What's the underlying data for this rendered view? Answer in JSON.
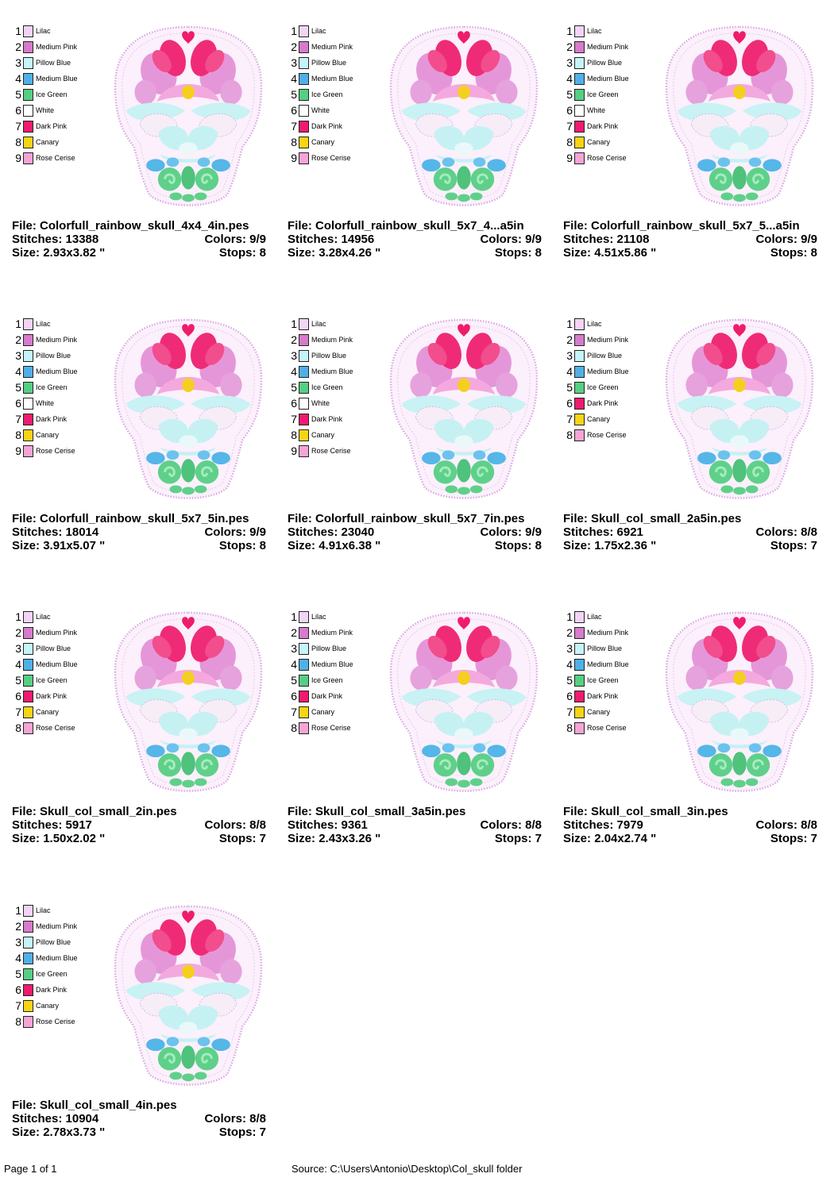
{
  "palette_colors": {
    "Lilac": "#f2d4f6",
    "Medium Pink": "#d77bcc",
    "Pillow Blue": "#c5f4f9",
    "Medium Blue": "#4fb0e8",
    "Ice Green": "#55cf83",
    "White": "#ffffff",
    "Dark Pink": "#f01b6e",
    "Canary": "#f6d515",
    "Rose Cerise": "#f6a4d6"
  },
  "labels": {
    "file": "File:",
    "stitches": "Stitches:",
    "colors": "Colors:",
    "size": "Size:",
    "stops": "Stops:"
  },
  "designs": [
    {
      "file": "Colorfull_rainbow_skull_4x4_4in.pes",
      "stitches": "13388",
      "colors": "9/9",
      "size": "2.93x3.82 \"",
      "stops": "8",
      "palette": [
        {
          "n": "1",
          "name": "Lilac"
        },
        {
          "n": "2",
          "name": "Medium Pink"
        },
        {
          "n": "3",
          "name": "Pillow Blue"
        },
        {
          "n": "4",
          "name": "Medium Blue"
        },
        {
          "n": "5",
          "name": "Ice Green"
        },
        {
          "n": "6",
          "name": "White"
        },
        {
          "n": "7",
          "name": "Dark Pink"
        },
        {
          "n": "8",
          "name": "Canary"
        },
        {
          "n": "9",
          "name": "Rose Cerise"
        }
      ]
    },
    {
      "file": "Colorfull_rainbow_skull_5x7_4...a5in",
      "stitches": "14956",
      "colors": "9/9",
      "size": "3.28x4.26 \"",
      "stops": "8",
      "palette": [
        {
          "n": "1",
          "name": "Lilac"
        },
        {
          "n": "2",
          "name": "Medium Pink"
        },
        {
          "n": "3",
          "name": "Pillow Blue"
        },
        {
          "n": "4",
          "name": "Medium Blue"
        },
        {
          "n": "5",
          "name": "Ice Green"
        },
        {
          "n": "6",
          "name": "White"
        },
        {
          "n": "7",
          "name": "Dark Pink"
        },
        {
          "n": "8",
          "name": "Canary"
        },
        {
          "n": "9",
          "name": "Rose Cerise"
        }
      ]
    },
    {
      "file": "Colorfull_rainbow_skull_5x7_5...a5in",
      "stitches": "21108",
      "colors": "9/9",
      "size": "4.51x5.86 \"",
      "stops": "8",
      "palette": [
        {
          "n": "1",
          "name": "Lilac"
        },
        {
          "n": "2",
          "name": "Medium Pink"
        },
        {
          "n": "3",
          "name": "Pillow Blue"
        },
        {
          "n": "4",
          "name": "Medium Blue"
        },
        {
          "n": "5",
          "name": "Ice Green"
        },
        {
          "n": "6",
          "name": "White"
        },
        {
          "n": "7",
          "name": "Dark Pink"
        },
        {
          "n": "8",
          "name": "Canary"
        },
        {
          "n": "9",
          "name": "Rose Cerise"
        }
      ]
    },
    {
      "file": "Colorfull_rainbow_skull_5x7_5in.pes",
      "stitches": "18014",
      "colors": "9/9",
      "size": "3.91x5.07 \"",
      "stops": "8",
      "palette": [
        {
          "n": "1",
          "name": "Lilac"
        },
        {
          "n": "2",
          "name": "Medium Pink"
        },
        {
          "n": "3",
          "name": "Pillow Blue"
        },
        {
          "n": "4",
          "name": "Medium Blue"
        },
        {
          "n": "5",
          "name": "Ice Green"
        },
        {
          "n": "6",
          "name": "White"
        },
        {
          "n": "7",
          "name": "Dark Pink"
        },
        {
          "n": "8",
          "name": "Canary"
        },
        {
          "n": "9",
          "name": "Rose Cerise"
        }
      ]
    },
    {
      "file": "Colorfull_rainbow_skull_5x7_7in.pes",
      "stitches": "23040",
      "colors": "9/9",
      "size": "4.91x6.38 \"",
      "stops": "8",
      "palette": [
        {
          "n": "1",
          "name": "Lilac"
        },
        {
          "n": "2",
          "name": "Medium Pink"
        },
        {
          "n": "3",
          "name": "Pillow Blue"
        },
        {
          "n": "4",
          "name": "Medium Blue"
        },
        {
          "n": "5",
          "name": "Ice Green"
        },
        {
          "n": "6",
          "name": "White"
        },
        {
          "n": "7",
          "name": "Dark Pink"
        },
        {
          "n": "8",
          "name": "Canary"
        },
        {
          "n": "9",
          "name": "Rose Cerise"
        }
      ]
    },
    {
      "file": "Skull_col_small_2a5in.pes",
      "stitches": "6921",
      "colors": "8/8",
      "size": "1.75x2.36 \"",
      "stops": "7",
      "palette": [
        {
          "n": "1",
          "name": "Lilac"
        },
        {
          "n": "2",
          "name": "Medium Pink"
        },
        {
          "n": "3",
          "name": "Pillow Blue"
        },
        {
          "n": "4",
          "name": "Medium Blue"
        },
        {
          "n": "5",
          "name": "Ice Green"
        },
        {
          "n": "6",
          "name": "Dark Pink"
        },
        {
          "n": "7",
          "name": "Canary"
        },
        {
          "n": "8",
          "name": "Rose Cerise"
        }
      ]
    },
    {
      "file": "Skull_col_small_2in.pes",
      "stitches": "5917",
      "colors": "8/8",
      "size": "1.50x2.02 \"",
      "stops": "7",
      "palette": [
        {
          "n": "1",
          "name": "Lilac"
        },
        {
          "n": "2",
          "name": "Medium Pink"
        },
        {
          "n": "3",
          "name": "Pillow Blue"
        },
        {
          "n": "4",
          "name": "Medium Blue"
        },
        {
          "n": "5",
          "name": "Ice Green"
        },
        {
          "n": "6",
          "name": "Dark Pink"
        },
        {
          "n": "7",
          "name": "Canary"
        },
        {
          "n": "8",
          "name": "Rose Cerise"
        }
      ]
    },
    {
      "file": "Skull_col_small_3a5in.pes",
      "stitches": "9361",
      "colors": "8/8",
      "size": "2.43x3.26 \"",
      "stops": "7",
      "palette": [
        {
          "n": "1",
          "name": "Lilac"
        },
        {
          "n": "2",
          "name": "Medium Pink"
        },
        {
          "n": "3",
          "name": "Pillow Blue"
        },
        {
          "n": "4",
          "name": "Medium Blue"
        },
        {
          "n": "5",
          "name": "Ice Green"
        },
        {
          "n": "6",
          "name": "Dark Pink"
        },
        {
          "n": "7",
          "name": "Canary"
        },
        {
          "n": "8",
          "name": "Rose Cerise"
        }
      ]
    },
    {
      "file": "Skull_col_small_3in.pes",
      "stitches": "7979",
      "colors": "8/8",
      "size": "2.04x2.74 \"",
      "stops": "7",
      "palette": [
        {
          "n": "1",
          "name": "Lilac"
        },
        {
          "n": "2",
          "name": "Medium Pink"
        },
        {
          "n": "3",
          "name": "Pillow Blue"
        },
        {
          "n": "4",
          "name": "Medium Blue"
        },
        {
          "n": "5",
          "name": "Ice Green"
        },
        {
          "n": "6",
          "name": "Dark Pink"
        },
        {
          "n": "7",
          "name": "Canary"
        },
        {
          "n": "8",
          "name": "Rose Cerise"
        }
      ]
    },
    {
      "file": "Skull_col_small_4in.pes",
      "stitches": "10904",
      "colors": "8/8",
      "size": "2.78x3.73 \"",
      "stops": "7",
      "palette": [
        {
          "n": "1",
          "name": "Lilac"
        },
        {
          "n": "2",
          "name": "Medium Pink"
        },
        {
          "n": "3",
          "name": "Pillow Blue"
        },
        {
          "n": "4",
          "name": "Medium Blue"
        },
        {
          "n": "5",
          "name": "Ice Green"
        },
        {
          "n": "6",
          "name": "Dark Pink"
        },
        {
          "n": "7",
          "name": "Canary"
        },
        {
          "n": "8",
          "name": "Rose Cerise"
        }
      ]
    }
  ],
  "footer": {
    "page": "Page 1 of 1",
    "source": "Source: C:\\Users\\Antonio\\Desktop\\Col_skull folder"
  }
}
